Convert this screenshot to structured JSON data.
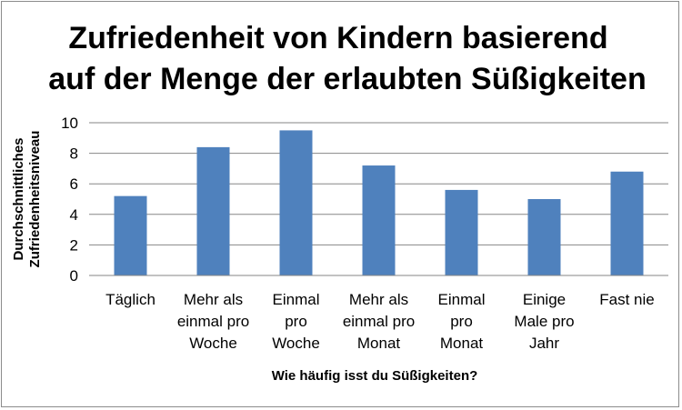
{
  "chart_data": {
    "type": "bar",
    "title_lines": [
      "Zufriedenheit von Kindern basierend",
      "auf der Menge der erlaubten Süßigkeiten"
    ],
    "categories": [
      [
        "Täglich"
      ],
      [
        "Mehr als",
        "einmal pro",
        "Woche"
      ],
      [
        "Einmal",
        "pro",
        "Woche"
      ],
      [
        "Mehr als",
        "einmal pro",
        "Monat"
      ],
      [
        "Einmal",
        "pro",
        "Monat"
      ],
      [
        "Einige",
        "Male pro",
        "Jahr"
      ],
      [
        "Fast nie"
      ]
    ],
    "values": [
      5.2,
      8.4,
      9.5,
      7.2,
      5.6,
      5.0,
      6.8
    ],
    "xlabel": "Wie häufig isst du Süßigkeiten?",
    "ylabel_lines": [
      "Durchschnittliches",
      "Zufriedenheitsniveau"
    ],
    "ylim": [
      0,
      10
    ],
    "yticks": [
      "0",
      "2",
      "4",
      "6",
      "8",
      "10"
    ],
    "grid": true,
    "bar_color": "#4f81bd",
    "gridline_color": "#868686"
  }
}
